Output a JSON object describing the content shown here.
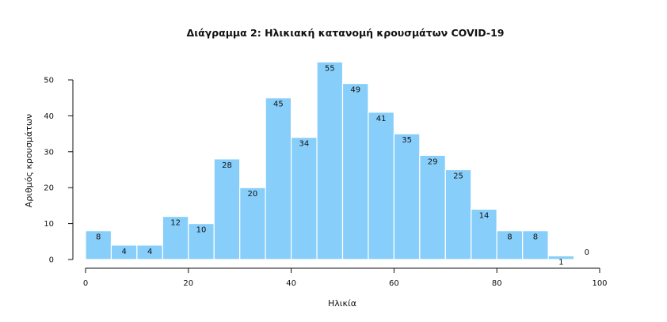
{
  "chart_data": {
    "type": "bar",
    "title": "Διάγραμμα 2: Ηλικιακή κατανομή κρουσμάτων COVID-19",
    "xlabel": "Ηλικία",
    "ylabel": "Αριθμός κρουσμάτων",
    "bin_width": 5,
    "bins_start": [
      0,
      5,
      10,
      15,
      20,
      25,
      30,
      35,
      40,
      45,
      50,
      55,
      60,
      65,
      70,
      75,
      80,
      85,
      90,
      95
    ],
    "values": [
      8,
      4,
      4,
      12,
      10,
      28,
      20,
      45,
      34,
      55,
      49,
      41,
      35,
      29,
      25,
      14,
      8,
      8,
      1,
      0
    ],
    "value_labels": [
      "8",
      "4",
      "4",
      "12",
      "10",
      "28",
      "20",
      "45",
      "34",
      "55",
      "49",
      "41",
      "35",
      "29",
      "25",
      "14",
      "8",
      "8",
      "1",
      "0"
    ],
    "xlim": [
      0,
      100
    ],
    "ylim": [
      0,
      55
    ],
    "xticks": [
      0,
      20,
      40,
      60,
      80,
      100
    ],
    "xtick_labels": [
      "0",
      "20",
      "40",
      "60",
      "80",
      "100"
    ],
    "yticks": [
      0,
      10,
      20,
      30,
      40,
      50
    ],
    "ytick_labels": [
      "0",
      "10",
      "20",
      "30",
      "40",
      "50"
    ],
    "grid": false,
    "bar_color": "#87cefa"
  }
}
